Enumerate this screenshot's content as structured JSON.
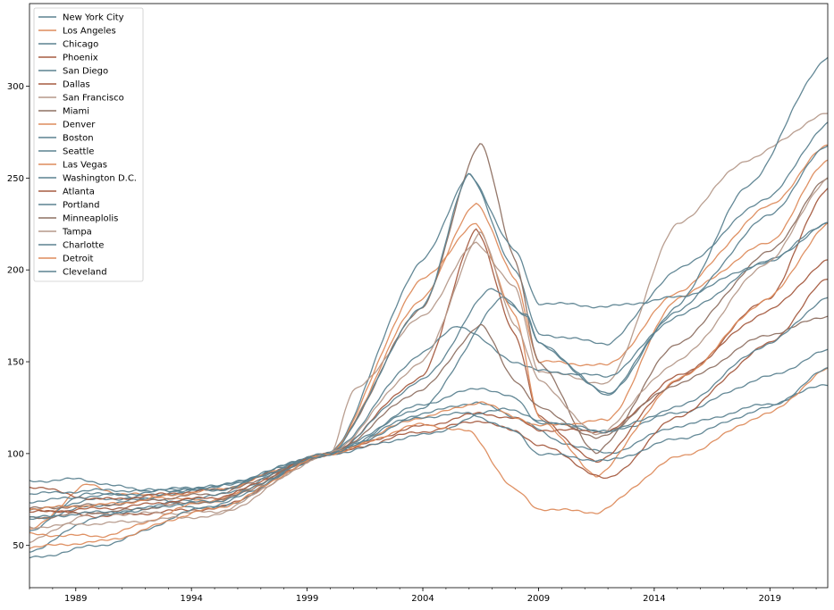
{
  "chart_data": {
    "type": "line",
    "title": "",
    "xlabel": "",
    "ylabel": "",
    "x_range": [
      1987.0,
      2021.5
    ],
    "ylim": [
      27,
      345
    ],
    "x_ticks": [
      1989,
      1994,
      1999,
      2004,
      2009,
      2014,
      2019
    ],
    "y_ticks": [
      50,
      100,
      150,
      200,
      250,
      300
    ],
    "grid": false,
    "legend_position": "top-left",
    "palette": [
      "#5b8290",
      "#dd8b5c",
      "#a55b40",
      "#b5998a",
      "#8e7062"
    ],
    "series": [
      {
        "name": "New York City",
        "color": "#5b8290",
        "points": [
          [
            1987.0,
            69
          ],
          [
            1990,
            75
          ],
          [
            1995,
            80
          ],
          [
            2000,
            100
          ],
          [
            2004,
            127
          ],
          [
            2006.5,
            136
          ],
          [
            2008,
            130
          ],
          [
            2009,
            117
          ],
          [
            2012,
            112
          ],
          [
            2015,
            122
          ],
          [
            2019,
            142
          ],
          [
            2021.5,
            156
          ]
        ]
      },
      {
        "name": "Los Angeles",
        "color": "#dd8b5c",
        "points": [
          [
            1987.0,
            58
          ],
          [
            1989.5,
            83
          ],
          [
            1991,
            78
          ],
          [
            1995,
            74
          ],
          [
            2000,
            100
          ],
          [
            2004,
            185
          ],
          [
            2006.3,
            237
          ],
          [
            2008,
            195
          ],
          [
            2009,
            150
          ],
          [
            2012,
            148
          ],
          [
            2015,
            188
          ],
          [
            2019,
            235
          ],
          [
            2021.5,
            268
          ]
        ]
      },
      {
        "name": "Chicago",
        "color": "#5b8290",
        "points": [
          [
            1987.0,
            64
          ],
          [
            1990,
            72
          ],
          [
            1995,
            82
          ],
          [
            2000,
            100
          ],
          [
            2004,
            122
          ],
          [
            2006.3,
            128
          ],
          [
            2008,
            120
          ],
          [
            2010,
            106
          ],
          [
            2012,
            100
          ],
          [
            2015,
            115
          ],
          [
            2019,
            127
          ],
          [
            2021.5,
            138
          ]
        ]
      },
      {
        "name": "Phoenix",
        "color": "#a55b40",
        "points": [
          [
            1987.0,
            70
          ],
          [
            1990,
            66
          ],
          [
            1995,
            70
          ],
          [
            2000,
            100
          ],
          [
            2004,
            142
          ],
          [
            2006.3,
            222
          ],
          [
            2008,
            165
          ],
          [
            2009,
            120
          ],
          [
            2011.5,
            95
          ],
          [
            2015,
            140
          ],
          [
            2019,
            185
          ],
          [
            2021.5,
            245
          ]
        ]
      },
      {
        "name": "San Diego",
        "color": "#5b8290",
        "points": [
          [
            1987.0,
            58
          ],
          [
            1989.5,
            79
          ],
          [
            1991,
            77
          ],
          [
            1995,
            70
          ],
          [
            2000,
            100
          ],
          [
            2004,
            205
          ],
          [
            2006,
            252
          ],
          [
            2008,
            200
          ],
          [
            2009,
            165
          ],
          [
            2012,
            160
          ],
          [
            2015,
            200
          ],
          [
            2019,
            240
          ],
          [
            2021.5,
            280
          ]
        ]
      },
      {
        "name": "Dallas",
        "color": "#a55b40",
        "points": [
          [
            1987.0,
            82
          ],
          [
            1990,
            75
          ],
          [
            1995,
            80
          ],
          [
            2000,
            100
          ],
          [
            2004,
            115
          ],
          [
            2006.5,
            122
          ],
          [
            2008,
            119
          ],
          [
            2009,
            113
          ],
          [
            2012,
            112
          ],
          [
            2015,
            142
          ],
          [
            2019,
            178
          ],
          [
            2021.5,
            205
          ]
        ]
      },
      {
        "name": "San Francisco",
        "color": "#b5998a",
        "points": [
          [
            1987.0,
            52
          ],
          [
            1989.5,
            67
          ],
          [
            1995,
            68
          ],
          [
            2000,
            100
          ],
          [
            2001,
            134
          ],
          [
            2004,
            175
          ],
          [
            2006.3,
            215
          ],
          [
            2008,
            190
          ],
          [
            2009,
            145
          ],
          [
            2012,
            138
          ],
          [
            2015,
            225
          ],
          [
            2018,
            260
          ],
          [
            2021.5,
            285
          ]
        ]
      },
      {
        "name": "Miami",
        "color": "#8e7062",
        "points": [
          [
            1987.0,
            70
          ],
          [
            1990,
            72
          ],
          [
            1995,
            78
          ],
          [
            2000,
            100
          ],
          [
            2004,
            180
          ],
          [
            2006.5,
            270
          ],
          [
            2008,
            205
          ],
          [
            2009,
            150
          ],
          [
            2011.5,
            100
          ],
          [
            2015,
            160
          ],
          [
            2019,
            210
          ],
          [
            2021.5,
            250
          ]
        ]
      },
      {
        "name": "Denver",
        "color": "#dd8b5c",
        "points": [
          [
            1987.0,
            56
          ],
          [
            1990,
            55
          ],
          [
            1995,
            75
          ],
          [
            2000,
            100
          ],
          [
            2004,
            120
          ],
          [
            2006.5,
            128
          ],
          [
            2008,
            120
          ],
          [
            2009,
            115
          ],
          [
            2012,
            118
          ],
          [
            2015,
            185
          ],
          [
            2019,
            215
          ],
          [
            2021.5,
            260
          ]
        ]
      },
      {
        "name": "Boston",
        "color": "#5b8290",
        "points": [
          [
            1987.0,
            85
          ],
          [
            1989,
            86
          ],
          [
            1992,
            80
          ],
          [
            1995,
            82
          ],
          [
            2000,
            100
          ],
          [
            2004,
            155
          ],
          [
            2005.5,
            170
          ],
          [
            2008,
            150
          ],
          [
            2009,
            145
          ],
          [
            2012,
            142
          ],
          [
            2015,
            175
          ],
          [
            2019,
            205
          ],
          [
            2021.5,
            226
          ]
        ]
      },
      {
        "name": "Seattle",
        "color": "#5b8290",
        "points": [
          [
            1987.0,
            47
          ],
          [
            1990,
            66
          ],
          [
            1995,
            77
          ],
          [
            2000,
            100
          ],
          [
            2004,
            140
          ],
          [
            2007,
            190
          ],
          [
            2008.5,
            175
          ],
          [
            2009,
            160
          ],
          [
            2012,
            132
          ],
          [
            2015,
            180
          ],
          [
            2018,
            245
          ],
          [
            2021.5,
            316
          ]
        ]
      },
      {
        "name": "Las Vegas",
        "color": "#dd8b5c",
        "points": [
          [
            1987.0,
            70
          ],
          [
            1990,
            72
          ],
          [
            1995,
            80
          ],
          [
            2000,
            100
          ],
          [
            2004,
            195
          ],
          [
            2006.3,
            225
          ],
          [
            2008,
            175
          ],
          [
            2009,
            120
          ],
          [
            2011.5,
            88
          ],
          [
            2015,
            140
          ],
          [
            2019,
            185
          ],
          [
            2021.5,
            225
          ]
        ]
      },
      {
        "name": "Washington D.C.",
        "color": "#5b8290",
        "points": [
          [
            1987.0,
            78
          ],
          [
            1990,
            80
          ],
          [
            1995,
            80
          ],
          [
            2000,
            100
          ],
          [
            2004,
            180
          ],
          [
            2006,
            252
          ],
          [
            2008,
            210
          ],
          [
            2009,
            182
          ],
          [
            2012,
            180
          ],
          [
            2015,
            185
          ],
          [
            2019,
            205
          ],
          [
            2021.5,
            225
          ]
        ]
      },
      {
        "name": "Atlanta",
        "color": "#a55b40",
        "points": [
          [
            1987.0,
            68
          ],
          [
            1990,
            70
          ],
          [
            1995,
            76
          ],
          [
            2000,
            100
          ],
          [
            2004,
            112
          ],
          [
            2006.5,
            118
          ],
          [
            2008,
            112
          ],
          [
            2009,
            105
          ],
          [
            2012,
            86
          ],
          [
            2015,
            120
          ],
          [
            2019,
            160
          ],
          [
            2021.5,
            195
          ]
        ]
      },
      {
        "name": "Portland",
        "color": "#5b8290",
        "points": [
          [
            1987.0,
            43
          ],
          [
            1990,
            50
          ],
          [
            1995,
            72
          ],
          [
            2000,
            100
          ],
          [
            2004,
            125
          ],
          [
            2007.5,
            185
          ],
          [
            2008.5,
            175
          ],
          [
            2009,
            160
          ],
          [
            2012,
            132
          ],
          [
            2015,
            178
          ],
          [
            2019,
            230
          ],
          [
            2021.5,
            268
          ]
        ]
      },
      {
        "name": "Minneaplolis",
        "color": "#8e7062",
        "points": [
          [
            1987.0,
            65
          ],
          [
            1990,
            68
          ],
          [
            1995,
            74
          ],
          [
            2000,
            100
          ],
          [
            2004,
            135
          ],
          [
            2006.5,
            170
          ],
          [
            2008,
            140
          ],
          [
            2009,
            125
          ],
          [
            2011.5,
            108
          ],
          [
            2015,
            138
          ],
          [
            2019,
            165
          ],
          [
            2021.5,
            175
          ]
        ]
      },
      {
        "name": "Tampa",
        "color": "#b5998a",
        "points": [
          [
            1987.0,
            60
          ],
          [
            1990,
            62
          ],
          [
            1995,
            66
          ],
          [
            2000,
            100
          ],
          [
            2004,
            150
          ],
          [
            2006.5,
            220
          ],
          [
            2008,
            170
          ],
          [
            2009,
            140
          ],
          [
            2011.5,
            110
          ],
          [
            2015,
            150
          ],
          [
            2019,
            205
          ],
          [
            2021.5,
            250
          ]
        ]
      },
      {
        "name": "Charlotte",
        "color": "#5b8290",
        "points": [
          [
            1987.0,
            74
          ],
          [
            1990,
            77
          ],
          [
            1995,
            82
          ],
          [
            2000,
            100
          ],
          [
            2004,
            110
          ],
          [
            2007.5,
            125
          ],
          [
            2009,
            118
          ],
          [
            2012,
            112
          ],
          [
            2015,
            125
          ],
          [
            2019,
            160
          ],
          [
            2021.5,
            185
          ]
        ]
      },
      {
        "name": "Detroit",
        "color": "#dd8b5c",
        "points": [
          [
            1987.0,
            49
          ],
          [
            1990,
            52
          ],
          [
            1995,
            70
          ],
          [
            2000,
            100
          ],
          [
            2004,
            116
          ],
          [
            2006,
            112
          ],
          [
            2008,
            80
          ],
          [
            2009,
            70
          ],
          [
            2011.5,
            68
          ],
          [
            2015,
            98
          ],
          [
            2019,
            122
          ],
          [
            2021.5,
            146
          ]
        ]
      },
      {
        "name": "Cleveland",
        "color": "#5b8290",
        "points": [
          [
            1987.0,
            65
          ],
          [
            1990,
            68
          ],
          [
            1995,
            74
          ],
          [
            2000,
            100
          ],
          [
            2004,
            120
          ],
          [
            2006,
            122
          ],
          [
            2008,
            112
          ],
          [
            2009,
            100
          ],
          [
            2012,
            96
          ],
          [
            2015,
            108
          ],
          [
            2019,
            125
          ],
          [
            2021.5,
            146
          ]
        ]
      }
    ]
  }
}
